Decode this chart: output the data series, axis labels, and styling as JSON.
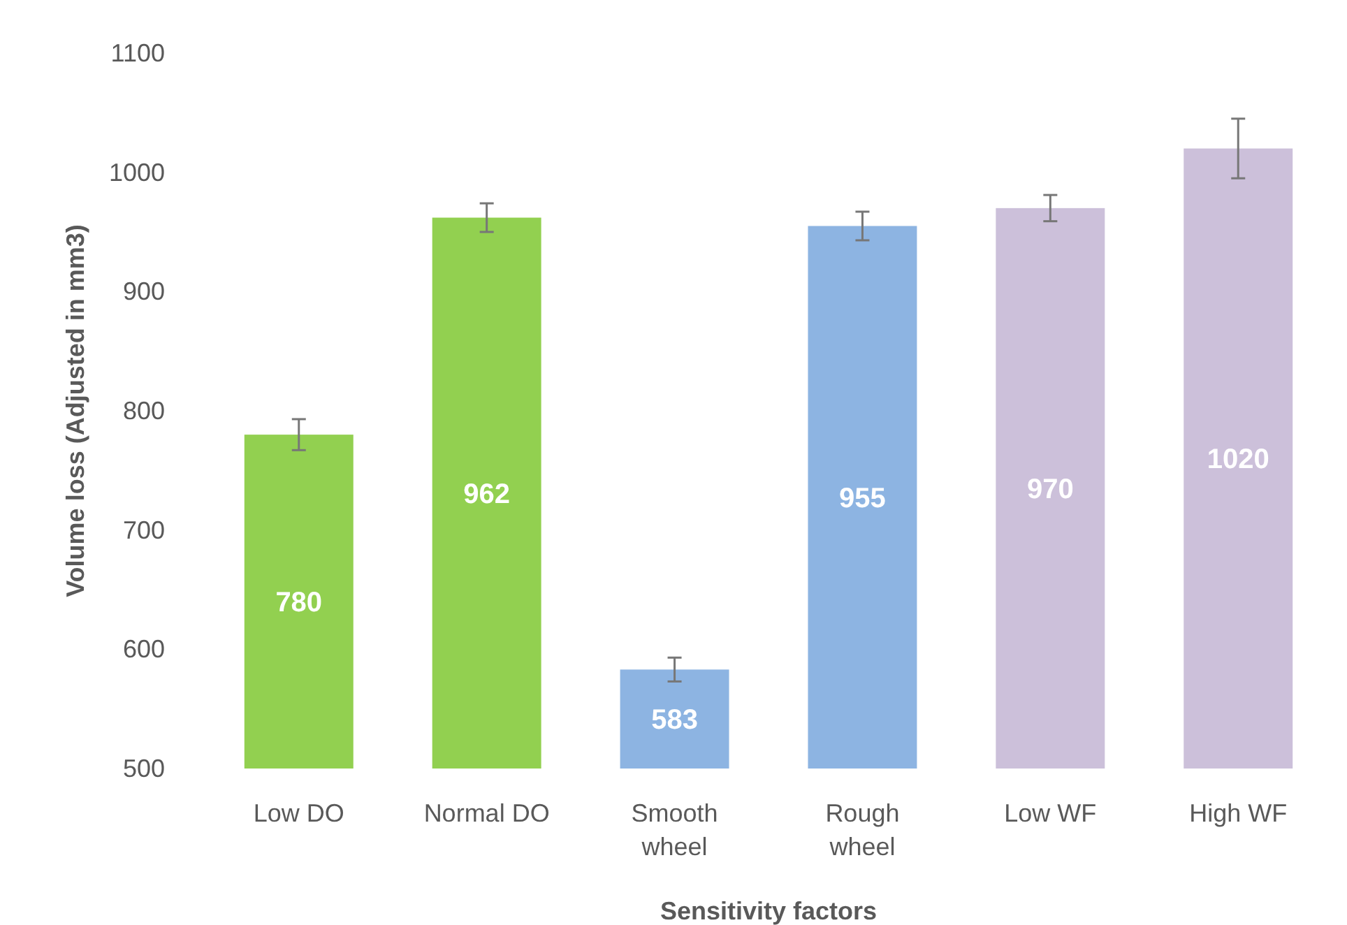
{
  "chart_data": {
    "type": "bar",
    "xlabel": "Sensitivity factors",
    "ylabel": "Volume loss (Adjusted in mm3)",
    "categories": [
      "Low DO",
      "Normal DO",
      "Smooth wheel",
      "Rough wheel",
      "Low WF",
      "High WF"
    ],
    "values": [
      780,
      962,
      583,
      955,
      970,
      1020
    ],
    "colors": [
      "#92d050",
      "#92d050",
      "#8db4e2",
      "#8db4e2",
      "#ccc0da",
      "#ccc0da"
    ],
    "errors": [
      13,
      12,
      10,
      12,
      11,
      25
    ],
    "ylim": [
      500,
      1100
    ],
    "yticks": [
      500,
      600,
      700,
      800,
      900,
      1000,
      1100
    ],
    "grid": false,
    "data_labels": true
  }
}
